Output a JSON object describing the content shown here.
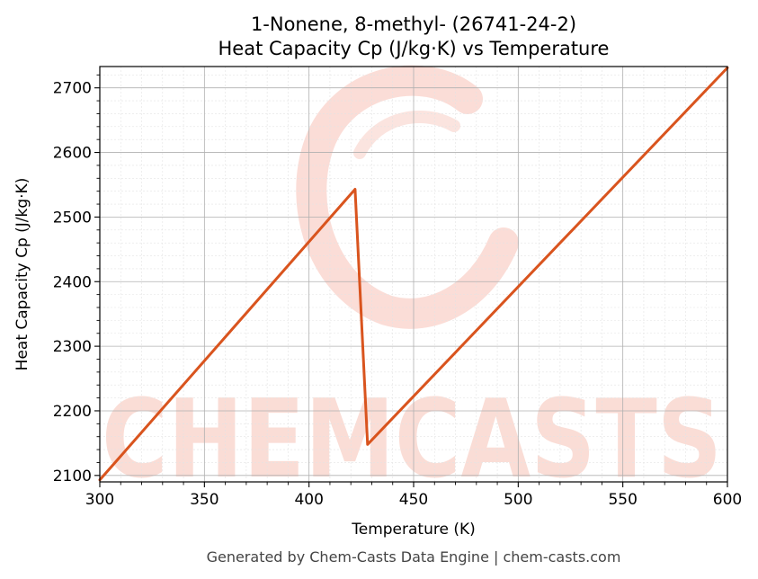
{
  "title_line1": "1-Nonene, 8-methyl- (26741-24-2)",
  "title_line2": "Heat Capacity Cp (J/kg·K) vs Temperature",
  "footer": "Generated by Chem-Casts Data Engine | chem-casts.com",
  "watermark": "CHEMCASTS",
  "colors": {
    "line": "#d9541e",
    "grid_major": "#b0b0b0",
    "grid_minor": "#e3e3e3",
    "watermark": "#f9d2c9"
  },
  "chart_data": {
    "type": "line",
    "title": "1-Nonene, 8-methyl- (26741-24-2)\nHeat Capacity Cp (J/kg·K) vs Temperature",
    "xlabel": "Temperature (K)",
    "ylabel": "Heat Capacity Cp (J/kg·K)",
    "xlim": [
      300,
      600
    ],
    "ylim": [
      2090,
      2733
    ],
    "xticks": [
      300,
      350,
      400,
      450,
      500,
      550,
      600
    ],
    "yticks": [
      2100,
      2200,
      2300,
      2400,
      2500,
      2600,
      2700
    ],
    "grid": true,
    "series": [
      {
        "x": [
          300,
          422,
          428,
          600
        ],
        "y": [
          2093,
          2543,
          2148,
          2731
        ]
      }
    ]
  }
}
